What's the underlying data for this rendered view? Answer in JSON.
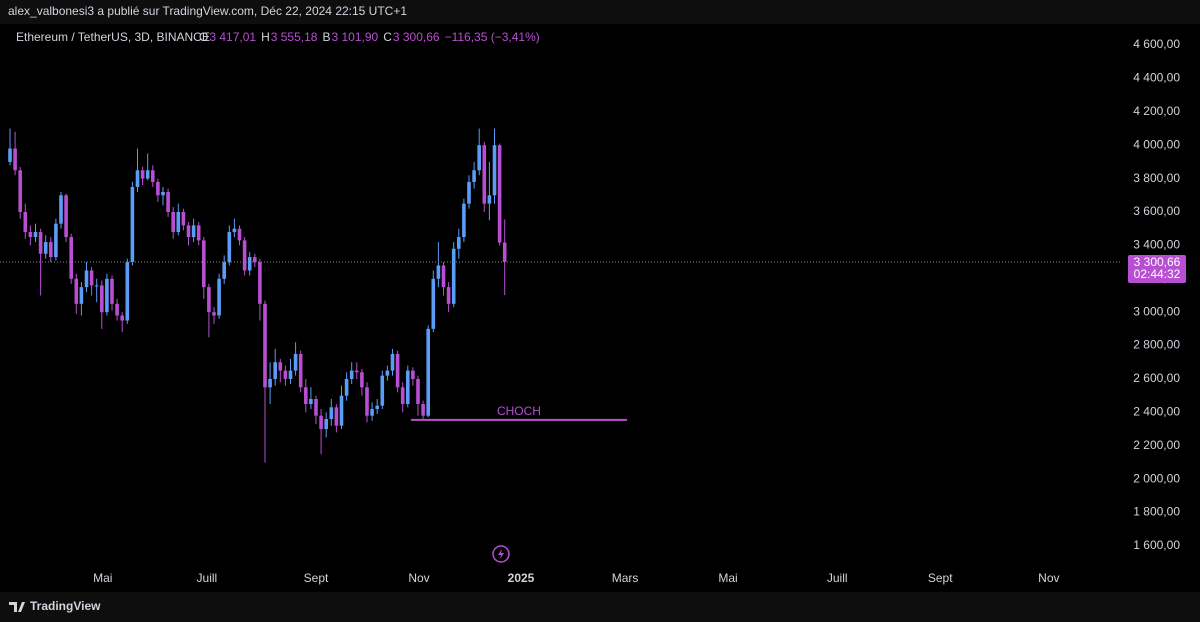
{
  "page_header": "alex_valbonesi3 a publié sur TradingView.com, Déc 22, 2024 22:15 UTC+1",
  "footer_brand": "TradingView",
  "chart_data": {
    "type": "candlestick",
    "symbol": "Ethereum / TetherUS, 3D, BINANCE",
    "legend": [
      {
        "key": "O",
        "label": "3 417,01"
      },
      {
        "key": "H",
        "label": "3 555,18"
      },
      {
        "key": "B",
        "label": "3 101,90"
      },
      {
        "key": "C",
        "label": "3 300,66"
      }
    ],
    "change_label": "−116,35 (−3,41%)",
    "up_color": "#5b9cf6",
    "down_color": "#b84fd2",
    "open": [
      3900,
      3980,
      3850,
      3600,
      3480,
      3450,
      3480,
      3350,
      3420,
      3330,
      3530,
      3700,
      3450,
      3200,
      3050,
      3150,
      3250,
      3160,
      3160,
      3000,
      3200,
      3050,
      2980,
      2950,
      3300,
      3750,
      3850,
      3800,
      3850,
      3780,
      3700,
      3720,
      3600,
      3480,
      3600,
      3520,
      3450,
      3520,
      3430,
      3150,
      3000,
      2980,
      3200,
      3300,
      3480,
      3500,
      3430,
      3250,
      3330,
      3300,
      3050,
      2550,
      2600,
      2700,
      2650,
      2600,
      2650,
      2750,
      2550,
      2450,
      2480,
      2380,
      2300,
      2360,
      2430,
      2320,
      2500,
      2600,
      2650,
      2640,
      2550,
      2380,
      2420,
      2440,
      2620,
      2650,
      2750,
      2550,
      2450,
      2650,
      2600,
      2450,
      2380,
      2900,
      3200,
      3280,
      3150,
      3050,
      3380,
      3450,
      3650,
      3780,
      3850,
      4000,
      3650,
      3700,
      4000,
      3417.01
    ],
    "high": [
      4100,
      4080,
      3870,
      3650,
      3520,
      3530,
      3500,
      3460,
      3450,
      3560,
      3720,
      3710,
      3470,
      3230,
      3180,
      3300,
      3270,
      3200,
      3190,
      3230,
      3220,
      3080,
      3000,
      3320,
      3780,
      3980,
      3870,
      3950,
      3880,
      3800,
      3750,
      3740,
      3630,
      3650,
      3620,
      3540,
      3560,
      3540,
      3450,
      3170,
      3030,
      3230,
      3340,
      3520,
      3560,
      3520,
      3450,
      3360,
      3350,
      3320,
      3070,
      2700,
      2780,
      2720,
      2680,
      2720,
      2820,
      2770,
      2600,
      2550,
      2500,
      2420,
      2400,
      2480,
      2450,
      2560,
      2640,
      2700,
      2700,
      2660,
      2580,
      2460,
      2480,
      2650,
      2680,
      2780,
      2770,
      2580,
      2680,
      2670,
      2620,
      2470,
      2920,
      3250,
      3420,
      3300,
      3180,
      3420,
      3500,
      3680,
      3820,
      3900,
      4100,
      4020,
      3900,
      4100,
      4010,
      3555.18
    ],
    "low": [
      3880,
      3820,
      3560,
      3440,
      3400,
      3420,
      3100,
      3320,
      3300,
      3310,
      3500,
      3420,
      3170,
      2990,
      2980,
      3120,
      3100,
      3060,
      2900,
      2980,
      3010,
      2950,
      2880,
      2930,
      3280,
      3720,
      3760,
      3790,
      3750,
      3660,
      3640,
      3570,
      3440,
      3460,
      3490,
      3400,
      3420,
      3400,
      3080,
      2850,
      2930,
      2960,
      3170,
      3280,
      3450,
      3400,
      3220,
      3220,
      3270,
      2950,
      2100,
      2450,
      2560,
      2580,
      2560,
      2570,
      2620,
      2520,
      2400,
      2420,
      2330,
      2150,
      2250,
      2320,
      2280,
      2300,
      2470,
      2570,
      2600,
      2500,
      2340,
      2350,
      2390,
      2420,
      2590,
      2620,
      2520,
      2400,
      2430,
      2560,
      2380,
      2360,
      2370,
      2880,
      3150,
      3100,
      3000,
      3030,
      3320,
      3420,
      3620,
      3740,
      3820,
      3600,
      3550,
      3650,
      3400,
      3101.9
    ],
    "close": [
      3980,
      3850,
      3600,
      3480,
      3450,
      3480,
      3350,
      3420,
      3330,
      3530,
      3700,
      3450,
      3200,
      3050,
      3150,
      3250,
      3160,
      3160,
      3000,
      3200,
      3050,
      2980,
      2950,
      3300,
      3750,
      3850,
      3800,
      3850,
      3780,
      3700,
      3720,
      3600,
      3480,
      3600,
      3520,
      3450,
      3520,
      3430,
      3150,
      3000,
      2980,
      3200,
      3300,
      3480,
      3500,
      3430,
      3250,
      3330,
      3300,
      3050,
      2550,
      2600,
      2700,
      2650,
      2600,
      2650,
      2750,
      2550,
      2450,
      2480,
      2380,
      2300,
      2360,
      2430,
      2320,
      2500,
      2600,
      2650,
      2640,
      2550,
      2380,
      2420,
      2440,
      2620,
      2650,
      2750,
      2550,
      2450,
      2650,
      2600,
      2450,
      2380,
      2900,
      3200,
      3280,
      3150,
      3050,
      3380,
      3450,
      3650,
      3780,
      3850,
      4000,
      3650,
      3700,
      4000,
      3417.01,
      3300.66
    ],
    "price_label": "3 300,66",
    "countdown": "02:44:32",
    "annotation": {
      "text": "CHOCH",
      "y": 2355,
      "x": [
        78.6,
        121
      ]
    },
    "xlim": [
      -1.96,
      217.65
    ],
    "xticks": [
      {
        "value": 18.2,
        "label": "Mai"
      },
      {
        "value": 38.6,
        "label": "Juill"
      },
      {
        "value": 60,
        "label": "Sept"
      },
      {
        "value": 80.2,
        "label": "Nov"
      },
      {
        "value": 100.2,
        "label": "2025"
      },
      {
        "value": 120.6,
        "label": "Mars"
      },
      {
        "value": 140.8,
        "label": "Mai"
      },
      {
        "value": 162.2,
        "label": "Juill"
      },
      {
        "value": 182.4,
        "label": "Sept"
      },
      {
        "value": 203.7,
        "label": "Nov"
      }
    ],
    "ylim": [
      1336,
      4726
    ],
    "yticks": [
      {
        "value": 1600,
        "label": "1 600,00"
      },
      {
        "value": 1800,
        "label": "1 800,00"
      },
      {
        "value": 2000,
        "label": "2 000,00"
      },
      {
        "value": 2200,
        "label": "2 200,00"
      },
      {
        "value": 2400,
        "label": "2 400,00"
      },
      {
        "value": 2600,
        "label": "2 600,00"
      },
      {
        "value": 2800,
        "label": "2 800,00"
      },
      {
        "value": 3000,
        "label": "3 000,00"
      },
      {
        "value": 3200,
        "label": "3 200,00"
      },
      {
        "value": 3400,
        "label": "3 400,00"
      },
      {
        "value": 3600,
        "label": "3 600,00"
      },
      {
        "value": 3800,
        "label": "3 800,00"
      },
      {
        "value": 4000,
        "label": "4 000,00"
      },
      {
        "value": 4200,
        "label": "4 200,00"
      },
      {
        "value": 4400,
        "label": "4 400,00"
      },
      {
        "value": 4600,
        "label": "4 600,00"
      }
    ]
  }
}
